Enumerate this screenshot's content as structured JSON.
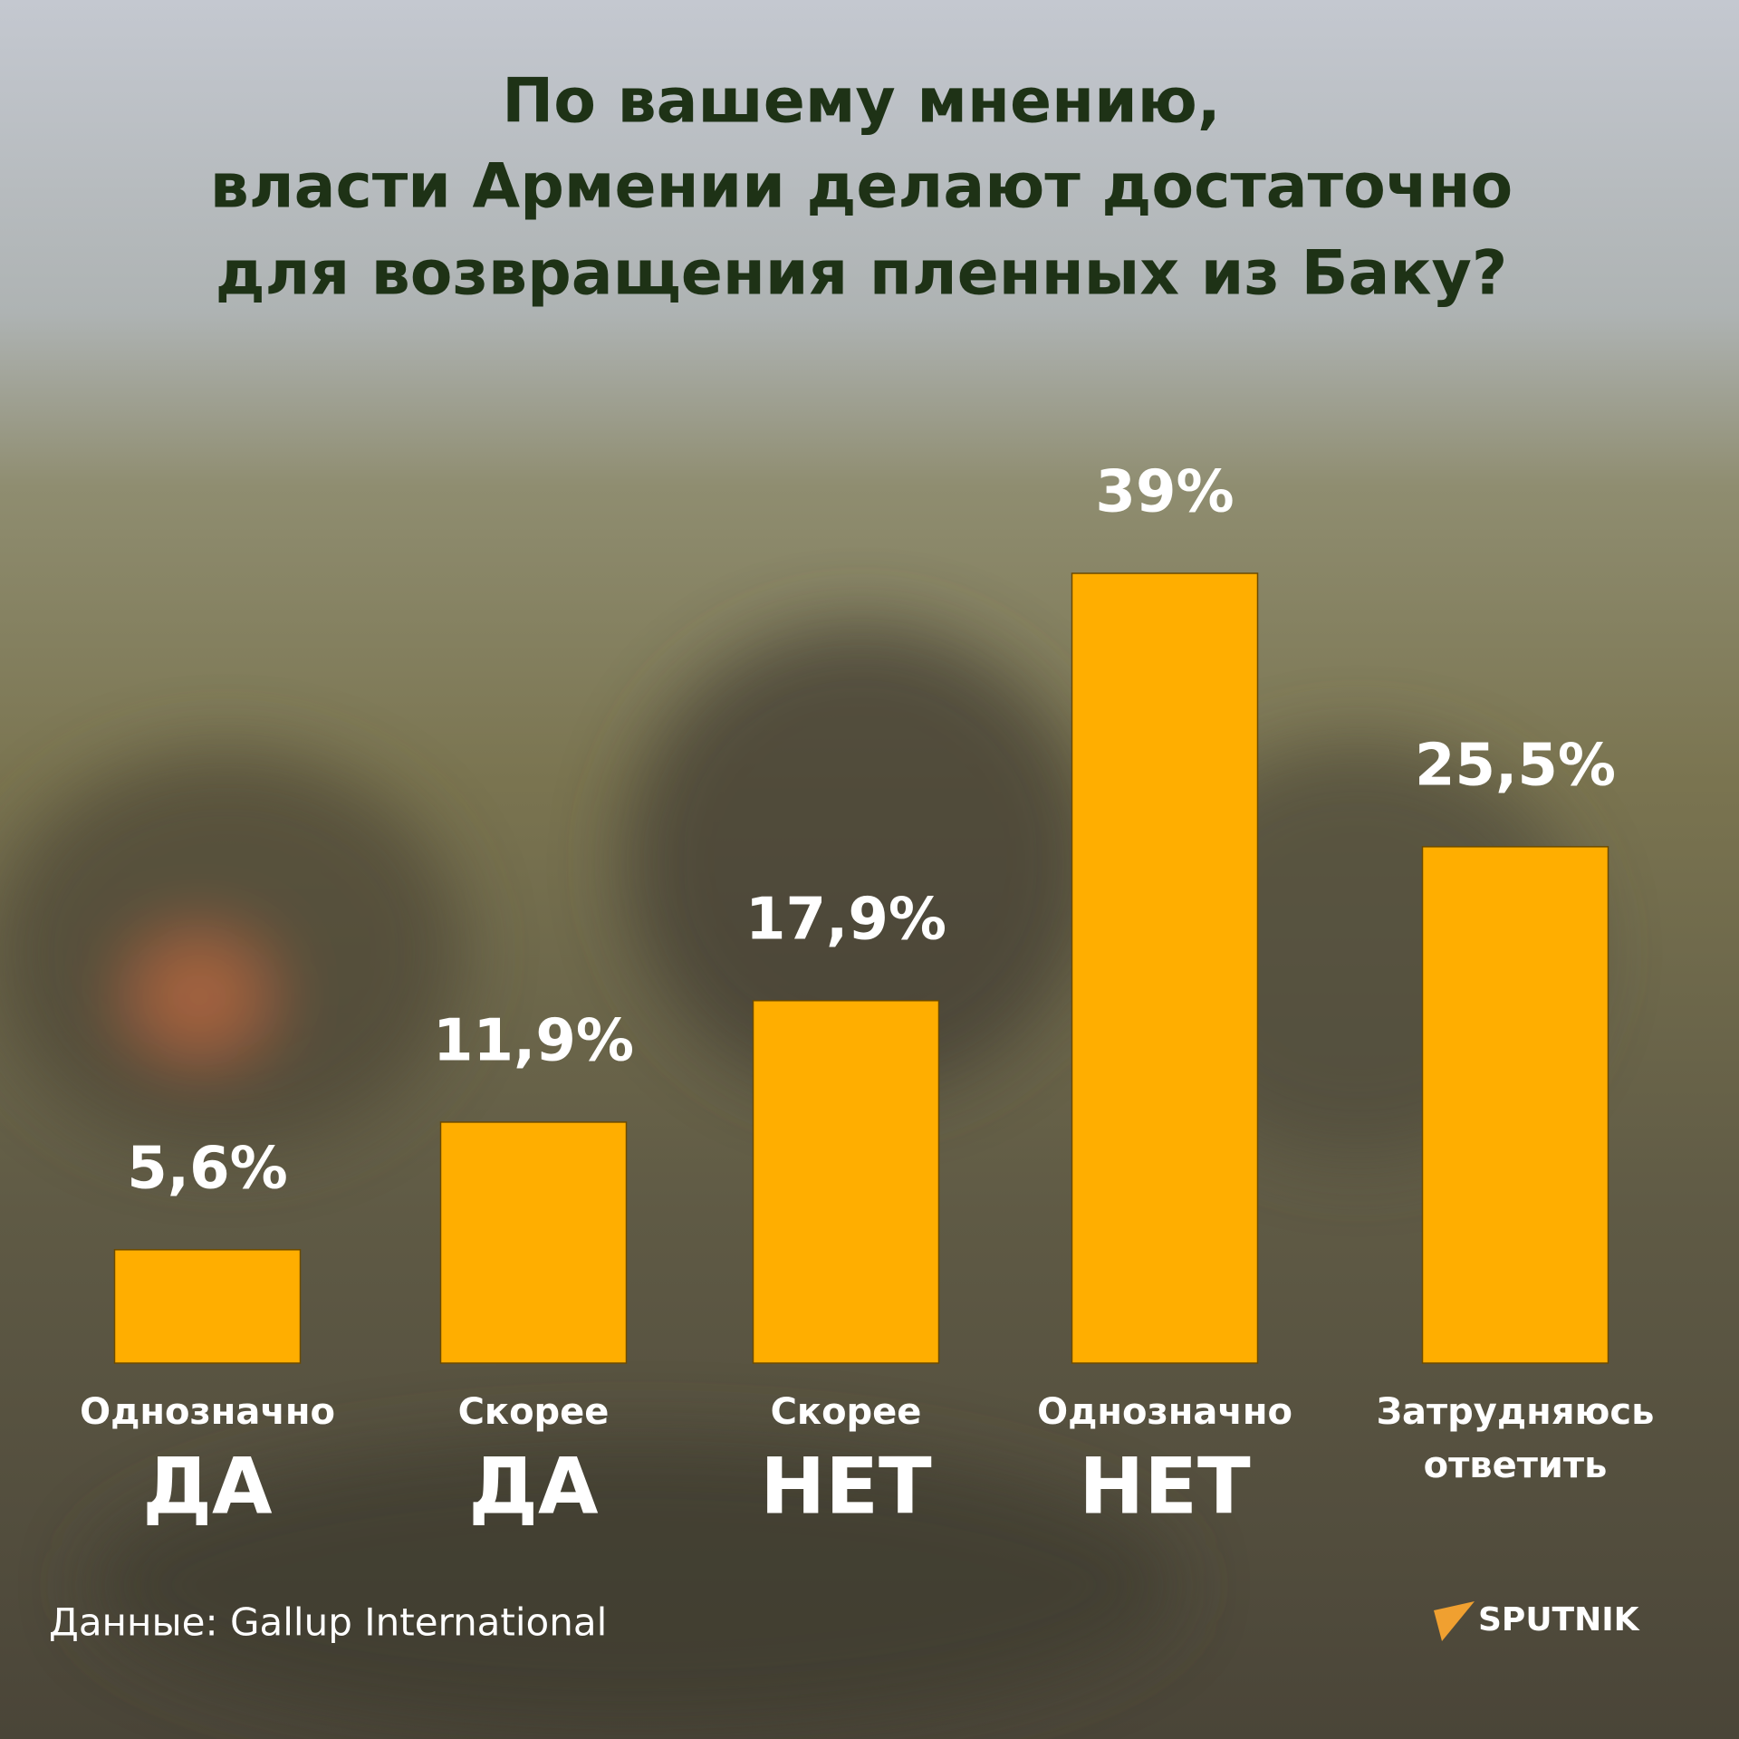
{
  "chart_data": {
    "type": "bar",
    "title": [
      "По вашему мнению,",
      "власти Армении делают достаточно",
      "для возвращения пленных из Баку?"
    ],
    "categories": [
      [
        "Однозначно",
        "ДА"
      ],
      [
        "Скорее",
        "ДА"
      ],
      [
        "Скорее",
        "НЕТ"
      ],
      [
        "Однозначно",
        "НЕТ"
      ],
      [
        "Затрудняюсь",
        "ответить"
      ]
    ],
    "values": [
      5.6,
      11.9,
      17.9,
      39,
      25.5
    ],
    "value_labels": [
      "5,6%",
      "11,9%",
      "17,9%",
      "39%",
      "25,5%"
    ],
    "color": "#ffae00",
    "source": "Данные: Gallup International",
    "logo": "SPUTNIK"
  }
}
